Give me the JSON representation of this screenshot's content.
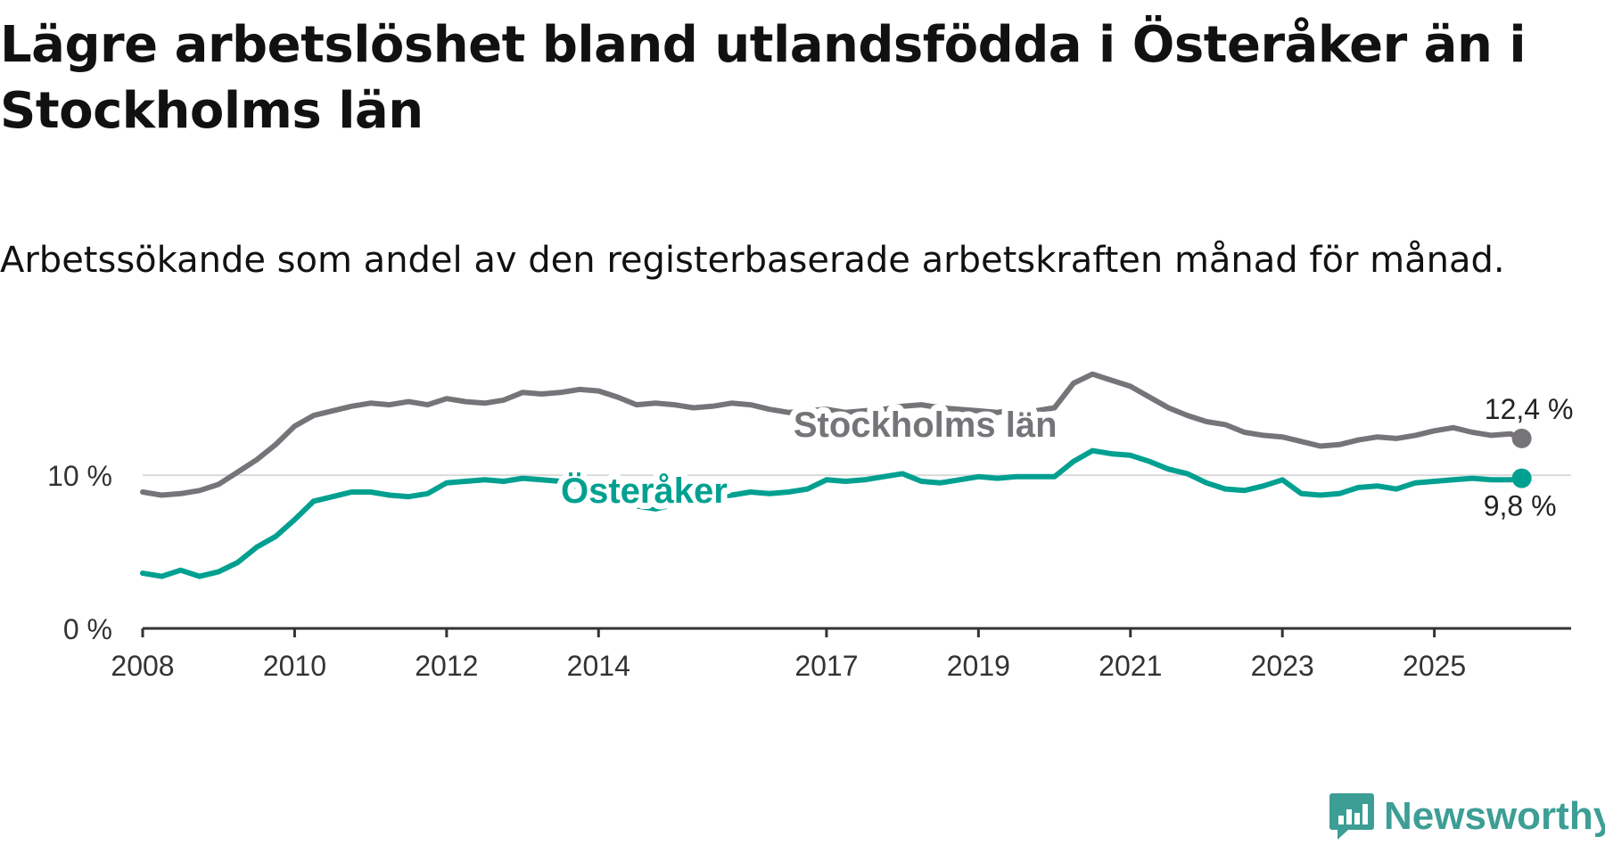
{
  "title": "Lägre arbetslöshet bland utlandsfödda i Österåker än i Stockholms län",
  "subtitle": "Arbetssökande som andel av den registerbaserade arbetskraften månad för månad.",
  "logo": {
    "text": "Newsworthy",
    "icon": "newsworthy-logo-icon",
    "color": "#3d9e95"
  },
  "chart_data": {
    "type": "line",
    "title": "Lägre arbetslöshet bland utlandsfödda i Österåker än i Stockholms län",
    "subtitle": "Arbetssökande som andel av den registerbaserade arbetskraften månad för månad.",
    "xlabel": "",
    "ylabel": "",
    "xlim": [
      2008.0,
      2026.8
    ],
    "ylim": [
      0,
      16
    ],
    "yticks": [
      0,
      10
    ],
    "ytick_labels": [
      "0 %",
      "10 %"
    ],
    "xticks": [
      2008,
      2010,
      2012,
      2014,
      2017,
      2019,
      2021,
      2023,
      2025
    ],
    "xtick_labels": [
      "2008",
      "2010",
      "2012",
      "2014",
      "2017",
      "2019",
      "2021",
      "2023",
      "2025"
    ],
    "gridlines": [
      10
    ],
    "series": [
      {
        "name": "Stockholms län",
        "color": "#767478",
        "label": "Stockholms län",
        "end_label": "12,4 %",
        "end_value": 12.4,
        "points": [
          [
            2008.0,
            8.9
          ],
          [
            2008.25,
            8.7
          ],
          [
            2008.5,
            8.8
          ],
          [
            2008.75,
            9.0
          ],
          [
            2009.0,
            9.4
          ],
          [
            2009.25,
            10.2
          ],
          [
            2009.5,
            11.0
          ],
          [
            2009.75,
            12.0
          ],
          [
            2010.0,
            13.2
          ],
          [
            2010.25,
            13.9
          ],
          [
            2010.5,
            14.2
          ],
          [
            2010.75,
            14.5
          ],
          [
            2011.0,
            14.7
          ],
          [
            2011.25,
            14.6
          ],
          [
            2011.5,
            14.8
          ],
          [
            2011.75,
            14.6
          ],
          [
            2012.0,
            15.0
          ],
          [
            2012.25,
            14.8
          ],
          [
            2012.5,
            14.7
          ],
          [
            2012.75,
            14.9
          ],
          [
            2013.0,
            15.4
          ],
          [
            2013.25,
            15.3
          ],
          [
            2013.5,
            15.4
          ],
          [
            2013.75,
            15.6
          ],
          [
            2014.0,
            15.5
          ],
          [
            2014.25,
            15.1
          ],
          [
            2014.5,
            14.6
          ],
          [
            2014.75,
            14.7
          ],
          [
            2015.0,
            14.6
          ],
          [
            2015.25,
            14.4
          ],
          [
            2015.5,
            14.5
          ],
          [
            2015.75,
            14.7
          ],
          [
            2016.0,
            14.6
          ],
          [
            2016.25,
            14.3
          ],
          [
            2016.5,
            14.1
          ],
          [
            2016.75,
            14.2
          ],
          [
            2017.0,
            14.3
          ],
          [
            2017.25,
            14.1
          ],
          [
            2017.5,
            14.2
          ],
          [
            2017.75,
            14.3
          ],
          [
            2018.0,
            14.5
          ],
          [
            2018.25,
            14.6
          ],
          [
            2018.5,
            14.4
          ],
          [
            2018.75,
            14.3
          ],
          [
            2019.0,
            14.2
          ],
          [
            2019.25,
            14.1
          ],
          [
            2019.5,
            14.3
          ],
          [
            2019.75,
            14.2
          ],
          [
            2020.0,
            14.4
          ],
          [
            2020.25,
            16.0
          ],
          [
            2020.5,
            16.6
          ],
          [
            2020.75,
            16.2
          ],
          [
            2021.0,
            15.8
          ],
          [
            2021.25,
            15.1
          ],
          [
            2021.5,
            14.4
          ],
          [
            2021.75,
            13.9
          ],
          [
            2022.0,
            13.5
          ],
          [
            2022.25,
            13.3
          ],
          [
            2022.5,
            12.8
          ],
          [
            2022.75,
            12.6
          ],
          [
            2023.0,
            12.5
          ],
          [
            2023.25,
            12.2
          ],
          [
            2023.5,
            11.9
          ],
          [
            2023.75,
            12.0
          ],
          [
            2024.0,
            12.3
          ],
          [
            2024.25,
            12.5
          ],
          [
            2024.5,
            12.4
          ],
          [
            2024.75,
            12.6
          ],
          [
            2025.0,
            12.9
          ],
          [
            2025.25,
            13.1
          ],
          [
            2025.5,
            12.8
          ],
          [
            2025.75,
            12.6
          ],
          [
            2026.0,
            12.7
          ],
          [
            2026.15,
            12.4
          ]
        ]
      },
      {
        "name": "Österåker",
        "color": "#00a091",
        "label": "Österåker",
        "end_label": "9,8 %",
        "end_value": 9.8,
        "points": [
          [
            2008.0,
            3.6
          ],
          [
            2008.25,
            3.4
          ],
          [
            2008.5,
            3.8
          ],
          [
            2008.75,
            3.4
          ],
          [
            2009.0,
            3.7
          ],
          [
            2009.25,
            4.3
          ],
          [
            2009.5,
            5.3
          ],
          [
            2009.75,
            6.0
          ],
          [
            2010.0,
            7.1
          ],
          [
            2010.25,
            8.3
          ],
          [
            2010.5,
            8.6
          ],
          [
            2010.75,
            8.9
          ],
          [
            2011.0,
            8.9
          ],
          [
            2011.25,
            8.7
          ],
          [
            2011.5,
            8.6
          ],
          [
            2011.75,
            8.8
          ],
          [
            2012.0,
            9.5
          ],
          [
            2012.25,
            9.6
          ],
          [
            2012.5,
            9.7
          ],
          [
            2012.75,
            9.6
          ],
          [
            2013.0,
            9.8
          ],
          [
            2013.25,
            9.7
          ],
          [
            2013.5,
            9.6
          ],
          [
            2013.75,
            9.2
          ],
          [
            2014.0,
            8.9
          ],
          [
            2014.25,
            8.4
          ],
          [
            2014.5,
            8.0
          ],
          [
            2014.75,
            7.8
          ],
          [
            2015.0,
            8.1
          ],
          [
            2015.25,
            8.4
          ],
          [
            2015.5,
            8.6
          ],
          [
            2015.75,
            8.7
          ],
          [
            2016.0,
            8.9
          ],
          [
            2016.25,
            8.8
          ],
          [
            2016.5,
            8.9
          ],
          [
            2016.75,
            9.1
          ],
          [
            2017.0,
            9.7
          ],
          [
            2017.25,
            9.6
          ],
          [
            2017.5,
            9.7
          ],
          [
            2017.75,
            9.9
          ],
          [
            2018.0,
            10.1
          ],
          [
            2018.25,
            9.6
          ],
          [
            2018.5,
            9.5
          ],
          [
            2018.75,
            9.7
          ],
          [
            2019.0,
            9.9
          ],
          [
            2019.25,
            9.8
          ],
          [
            2019.5,
            9.9
          ],
          [
            2019.75,
            9.9
          ],
          [
            2020.0,
            9.9
          ],
          [
            2020.25,
            10.9
          ],
          [
            2020.5,
            11.6
          ],
          [
            2020.75,
            11.4
          ],
          [
            2021.0,
            11.3
          ],
          [
            2021.25,
            10.9
          ],
          [
            2021.5,
            10.4
          ],
          [
            2021.75,
            10.1
          ],
          [
            2022.0,
            9.5
          ],
          [
            2022.25,
            9.1
          ],
          [
            2022.5,
            9.0
          ],
          [
            2022.75,
            9.3
          ],
          [
            2023.0,
            9.7
          ],
          [
            2023.25,
            8.8
          ],
          [
            2023.5,
            8.7
          ],
          [
            2023.75,
            8.8
          ],
          [
            2024.0,
            9.2
          ],
          [
            2024.25,
            9.3
          ],
          [
            2024.5,
            9.1
          ],
          [
            2024.75,
            9.5
          ],
          [
            2025.0,
            9.6
          ],
          [
            2025.25,
            9.7
          ],
          [
            2025.5,
            9.8
          ],
          [
            2025.75,
            9.7
          ],
          [
            2026.0,
            9.7
          ],
          [
            2026.15,
            9.8
          ]
        ]
      }
    ]
  }
}
